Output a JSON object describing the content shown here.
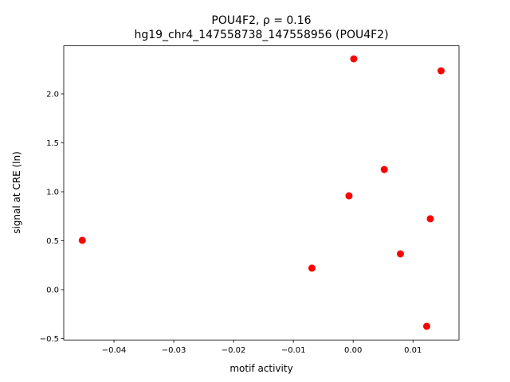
{
  "chart_data": {
    "type": "scatter",
    "title": "POU4F2, ρ = 0.16",
    "subtitle": "hg19_chr4_147558738_147558956 (POU4F2)",
    "x_label": "motif activity",
    "y_label": "signal at CRE (ln)",
    "color": "#ff0000",
    "x": [
      -0.0453,
      0.0001,
      0.0147,
      0.0052,
      -0.0007,
      0.0129,
      0.0079,
      -0.0069,
      0.0123
    ],
    "values": [
      0.504,
      2.358,
      2.236,
      1.228,
      0.959,
      0.724,
      0.366,
      0.22,
      -0.374
    ],
    "xlim": [
      -0.0484,
      0.0177
    ],
    "ylim": [
      -0.514,
      2.491
    ],
    "xticks": [
      {
        "value": -0.04,
        "label": "−0.04"
      },
      {
        "value": -0.03,
        "label": "−0.03"
      },
      {
        "value": -0.02,
        "label": "−0.02"
      },
      {
        "value": -0.01,
        "label": "−0.01"
      },
      {
        "value": 0,
        "label": "0.00"
      },
      0.01
    ],
    "yticks": [
      {
        "value": -0.5,
        "label": "−0.5"
      },
      {
        "value": 0,
        "label": "0.0"
      },
      0.5,
      {
        "value": 1,
        "label": "1.0"
      },
      1.5,
      {
        "value": 2,
        "label": "2.0"
      }
    ],
    "grid": false
  }
}
